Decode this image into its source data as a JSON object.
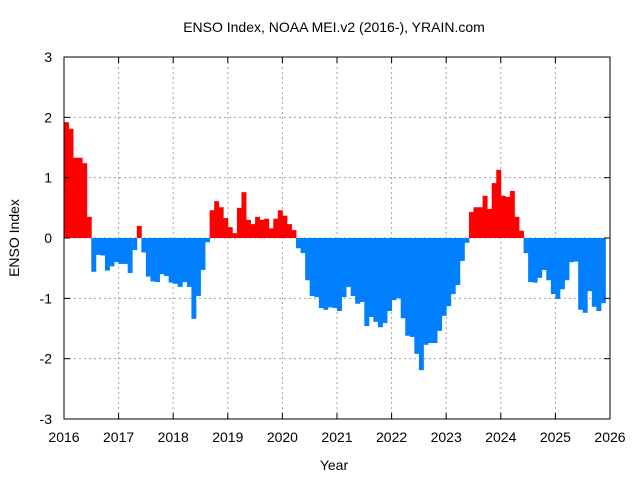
{
  "chart_data": {
    "type": "bar",
    "title": "ENSO Index, NOAA MEI.v2 (2016-), YRAIN.com",
    "xlabel": "Year",
    "ylabel": "ENSO Index",
    "xlim": [
      2016,
      2026
    ],
    "ylim": [
      -3,
      3
    ],
    "x_ticks": [
      "2016",
      "2017",
      "2018",
      "2019",
      "2020",
      "2021",
      "2022",
      "2023",
      "2024",
      "2025",
      "2026"
    ],
    "y_ticks": [
      "3",
      "2",
      "1",
      "0",
      "-1",
      "-2",
      "-3"
    ],
    "grid": true,
    "frequency": "monthly",
    "colors": {
      "positive": "#ff0000",
      "negative": "#0080ff",
      "grid": "#a0a0a0"
    },
    "values_by_year": {
      "2016": [
        1.92,
        1.81,
        1.33,
        1.33,
        1.24,
        0.35,
        -0.56,
        -0.28,
        -0.29,
        -0.54,
        -0.47,
        -0.4
      ],
      "2017": [
        -0.43,
        -0.43,
        -0.58,
        -0.2,
        0.2,
        -0.24,
        -0.64,
        -0.72,
        -0.73,
        -0.6,
        -0.63,
        -0.74
      ],
      "2018": [
        -0.76,
        -0.81,
        -0.73,
        -0.81,
        -1.34,
        -0.96,
        -0.53,
        -0.07,
        0.46,
        0.61,
        0.51,
        0.33
      ],
      "2019": [
        0.18,
        0.08,
        0.5,
        0.76,
        0.3,
        0.23,
        0.35,
        0.3,
        0.32,
        0.16,
        0.32,
        0.46
      ],
      "2020": [
        0.37,
        0.23,
        0.13,
        -0.17,
        -0.25,
        -0.7,
        -0.96,
        -0.98,
        -1.16,
        -1.19,
        -1.15,
        -1.16
      ],
      "2021": [
        -1.21,
        -0.98,
        -0.81,
        -0.96,
        -1.09,
        -1.06,
        -1.46,
        -1.31,
        -1.39,
        -1.48,
        -1.41,
        -1.21
      ],
      "2022": [
        -1.03,
        -1.0,
        -1.33,
        -1.62,
        -1.64,
        -1.92,
        -2.19,
        -1.77,
        -1.74,
        -1.74,
        -1.54,
        -1.29
      ],
      "2023": [
        -1.13,
        -0.93,
        -0.78,
        -0.38,
        -0.08,
        0.43,
        0.51,
        0.51,
        0.7,
        0.48,
        0.91,
        1.13
      ],
      "2024": [
        0.7,
        0.68,
        0.78,
        0.35,
        0.12,
        -0.25,
        -0.73,
        -0.74,
        -0.66,
        -0.53,
        -0.7,
        -0.93
      ],
      "2025": [
        -1.01,
        -0.85,
        -0.7,
        -0.4,
        -0.39,
        -1.19,
        -1.24,
        -0.88,
        -1.14,
        -1.21,
        -1.08
      ]
    }
  }
}
